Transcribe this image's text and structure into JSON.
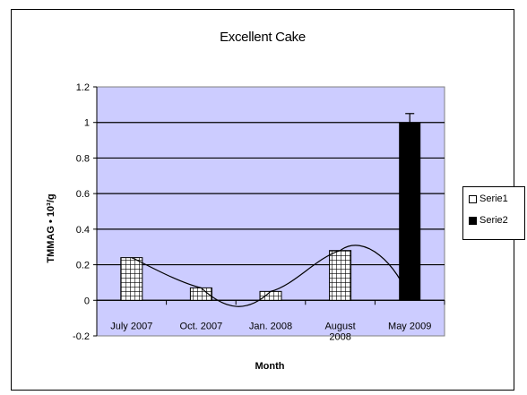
{
  "chart_data": {
    "type": "bar",
    "title": "Excellent Cake",
    "xlabel": "Month",
    "ylabel": "TMMAG • 10³/g",
    "ylim": [
      -0.2,
      1.2
    ],
    "yticks": [
      "1.2",
      "1",
      "0.8",
      "0.6",
      "0.4",
      "0.2",
      "0",
      "-0.2"
    ],
    "categories": [
      "July 2007",
      "Oct. 2007",
      "Jan. 2008",
      "August 2008",
      "May 2009"
    ],
    "series": [
      {
        "name": "Serie1",
        "values": [
          0.24,
          0.07,
          0.05,
          0.28,
          0.0
        ],
        "pattern": "grid"
      },
      {
        "name": "Serie2",
        "values": [
          0.0,
          0.0,
          0.0,
          0.0,
          1.0
        ],
        "pattern": "solid",
        "error": [
          0,
          0,
          0,
          0,
          0.05
        ]
      }
    ],
    "trendline": "smooth curve",
    "grid": true,
    "legend_position": "right",
    "plot_background": "#ccccff"
  }
}
